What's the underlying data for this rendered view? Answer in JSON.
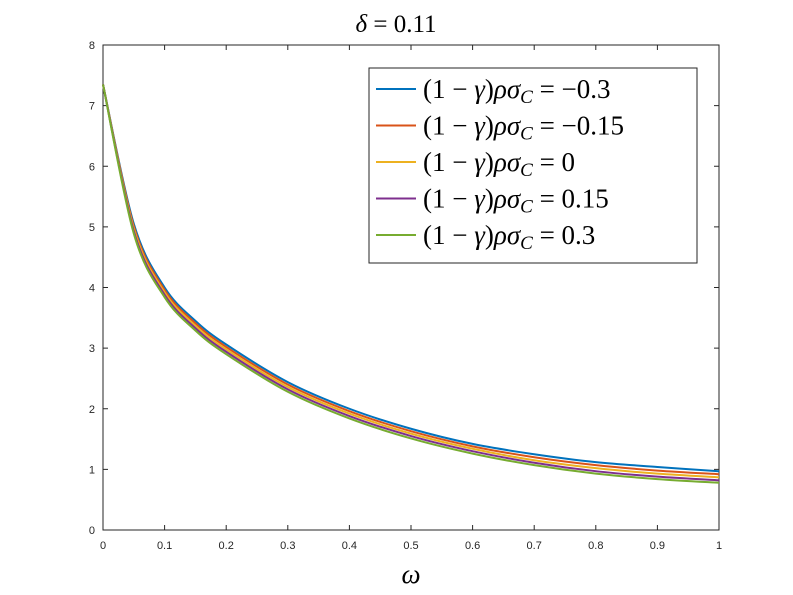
{
  "chart_data": {
    "type": "line",
    "title": "δ = 0.11",
    "title_parts": {
      "symbol": "δ",
      "rest": " = 0.11"
    },
    "xlabel": "ω",
    "ylabel": "",
    "xlim": [
      0,
      1
    ],
    "ylim": [
      0,
      8
    ],
    "xticks": [
      0,
      0.1,
      0.2,
      0.3,
      0.4,
      0.5,
      0.6,
      0.7,
      0.8,
      0.9,
      1
    ],
    "xtick_labels": [
      "0",
      "0.1",
      "0.2",
      "0.3",
      "0.4",
      "0.5",
      "0.6",
      "0.7",
      "0.8",
      "0.9",
      "1"
    ],
    "yticks": [
      0,
      1,
      2,
      3,
      4,
      5,
      6,
      7,
      8
    ],
    "ytick_labels": [
      "0",
      "1",
      "2",
      "3",
      "4",
      "5",
      "6",
      "7",
      "8"
    ],
    "grid": false,
    "legend_position": "top-right",
    "x": [
      0,
      0.05,
      0.1,
      0.15,
      0.2,
      0.3,
      0.4,
      0.5,
      0.6,
      0.7,
      0.8,
      0.9,
      1.0
    ],
    "series": [
      {
        "name": "(1 − γ)ρσC = −0.3",
        "legend_value": "−0.3",
        "color": "#0072BD",
        "values": [
          7.35,
          5.05,
          4.0,
          3.45,
          3.06,
          2.44,
          2.0,
          1.67,
          1.42,
          1.25,
          1.12,
          1.04,
          0.97
        ]
      },
      {
        "name": "(1 − γ)ρσC = −0.15",
        "legend_value": "−0.15",
        "color": "#D95319",
        "values": [
          7.35,
          5.01,
          3.96,
          3.41,
          3.02,
          2.4,
          1.96,
          1.63,
          1.38,
          1.2,
          1.07,
          0.98,
          0.92
        ]
      },
      {
        "name": "(1 − γ)ρσC = 0",
        "legend_value": "0",
        "color": "#EDB120",
        "values": [
          7.35,
          4.97,
          3.92,
          3.37,
          2.98,
          2.36,
          1.92,
          1.59,
          1.34,
          1.15,
          1.02,
          0.93,
          0.87
        ]
      },
      {
        "name": "(1 − γ)ρσC = 0.15",
        "legend_value": "0.15",
        "color": "#7E2F8E",
        "values": [
          7.35,
          4.93,
          3.88,
          3.33,
          2.94,
          2.32,
          1.88,
          1.55,
          1.3,
          1.11,
          0.97,
          0.88,
          0.82
        ]
      },
      {
        "name": "(1 − γ)ρσC = 0.3",
        "legend_value": "0.3",
        "color": "#77AC30",
        "values": [
          7.35,
          4.89,
          3.84,
          3.29,
          2.9,
          2.28,
          1.84,
          1.51,
          1.26,
          1.07,
          0.93,
          0.84,
          0.78
        ]
      }
    ]
  }
}
